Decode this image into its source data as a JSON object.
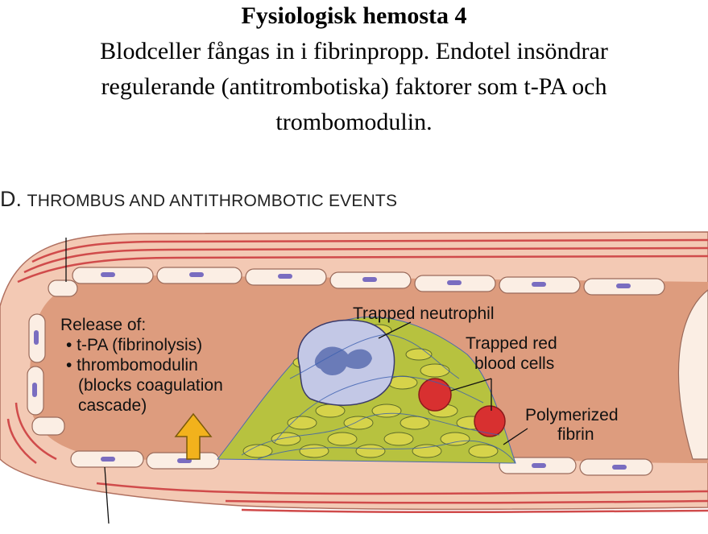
{
  "slide": {
    "title": "Fysiologisk hemosta 4",
    "body_lines": [
      "Blodceller fångas in i fibrinpropp. Endotel insöndrar",
      "regulerande (antitrombotiska) faktorer som t-PA och",
      "trombomodulin."
    ]
  },
  "figure": {
    "panel_letter": "D.",
    "panel_title": "THROMBUS AND ANTITHROMBOTIC EVENTS",
    "release_lines": [
      "Release of:",
      "• t-PA (fibrinolysis)",
      "• thrombomodulin",
      "(blocks coagulation",
      "cascade)"
    ],
    "labels": {
      "neutrophil": "Trapped neutrophil",
      "rbc_line1": "Trapped red",
      "rbc_line2": "blood cells",
      "fibrin_line1": "Polymerized",
      "fibrin_line2": "fibrin"
    },
    "colors": {
      "vessel_wall": "#f3c9b4",
      "lumen": "#dd9c7e",
      "wall_stripes": "#d04b4b",
      "endothelium": "#fbeee4",
      "platelet": "#c9c73a",
      "neutrophil": "#c3c8e6",
      "nucleus": "#6a7bb8",
      "rbc": "#d83030",
      "arrow": "#f2b21c",
      "fibrin": "#3b5fb0"
    }
  }
}
